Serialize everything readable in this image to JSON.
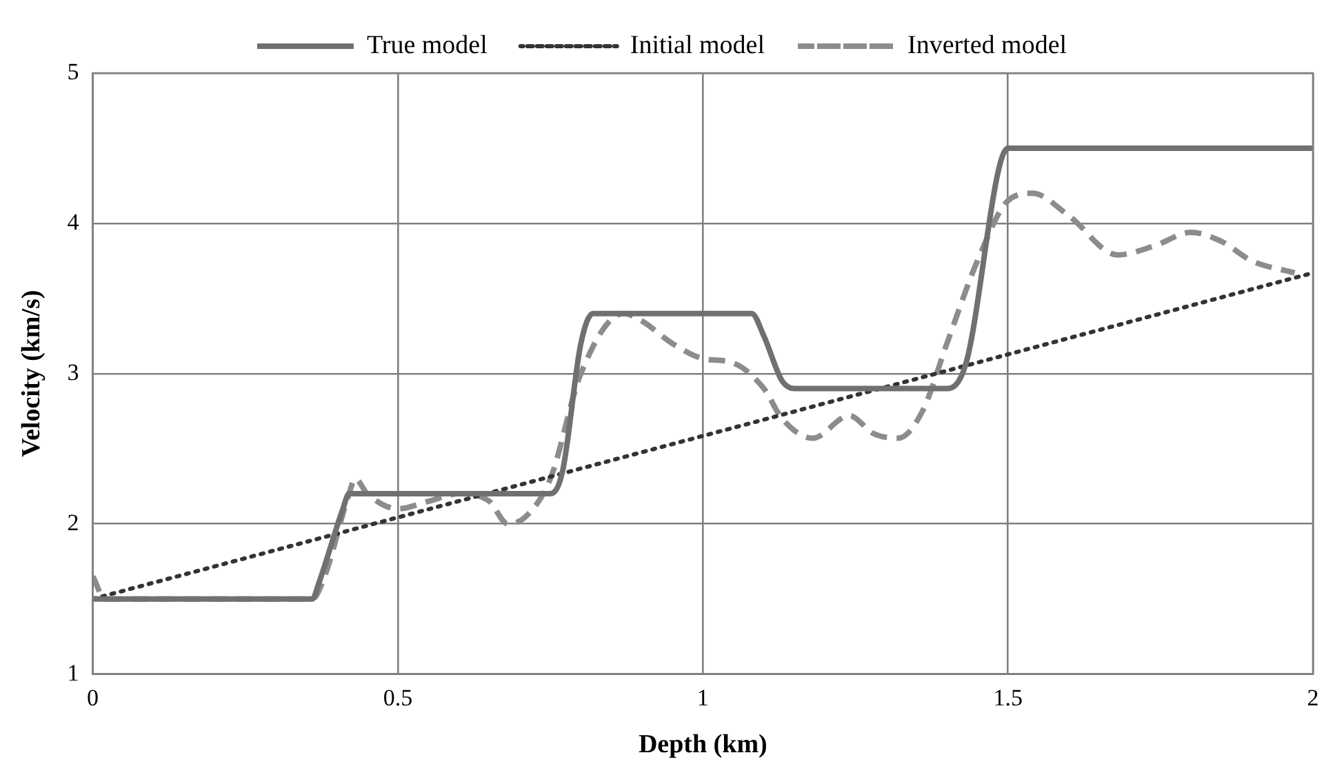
{
  "chart_data": {
    "type": "line",
    "xlabel": "Depth (km)",
    "ylabel": "Velocity (km/s)",
    "xlim": [
      0,
      2
    ],
    "xticks": [
      0,
      0.5,
      1,
      1.5,
      2
    ],
    "ylim": [
      1,
      5
    ],
    "yticks": [
      1,
      2,
      3,
      4,
      5
    ],
    "grid": true,
    "legend": "top",
    "marker": "none",
    "series": [
      {
        "name": "True model",
        "color": "#707070",
        "line_style": "solid",
        "x": [
          0,
          0.36,
          0.37,
          0.41,
          0.42,
          0.75,
          0.77,
          0.8,
          0.82,
          1.08,
          1.1,
          1.13,
          1.15,
          1.4,
          1.43,
          1.5,
          2
        ],
        "values": [
          1.5,
          1.5,
          1.6,
          2.1,
          2.2,
          2.2,
          2.35,
          3.2,
          3.4,
          3.4,
          3.25,
          2.95,
          2.9,
          2.9,
          3.05,
          4.5,
          4.5
        ]
      },
      {
        "name": "Initial model",
        "color": "#333333",
        "line_style": "dotted",
        "x": [
          0,
          2
        ],
        "values": [
          1.5,
          3.67
        ]
      },
      {
        "name": "Inverted model",
        "color": "#8c8c8c",
        "line_style": "dashed",
        "x": [
          0,
          0.02,
          0.36,
          0.38,
          0.42,
          0.43,
          0.45,
          0.5,
          0.55,
          0.6,
          0.65,
          0.68,
          0.71,
          0.75,
          0.8,
          0.87,
          0.9,
          0.95,
          1.0,
          1.05,
          1.1,
          1.13,
          1.18,
          1.24,
          1.28,
          1.32,
          1.36,
          1.4,
          1.45,
          1.5,
          1.54,
          1.6,
          1.68,
          1.74,
          1.8,
          1.85,
          1.9,
          1.97
        ],
        "values": [
          1.65,
          1.5,
          1.5,
          1.65,
          2.2,
          2.3,
          2.2,
          2.1,
          2.15,
          2.2,
          2.15,
          2.0,
          2.05,
          2.3,
          3.0,
          3.4,
          3.35,
          3.2,
          3.1,
          3.07,
          2.9,
          2.7,
          2.57,
          2.72,
          2.6,
          2.57,
          2.75,
          3.2,
          3.75,
          4.15,
          4.2,
          4.05,
          3.79,
          3.85,
          3.94,
          3.88,
          3.75,
          3.67
        ]
      }
    ]
  }
}
